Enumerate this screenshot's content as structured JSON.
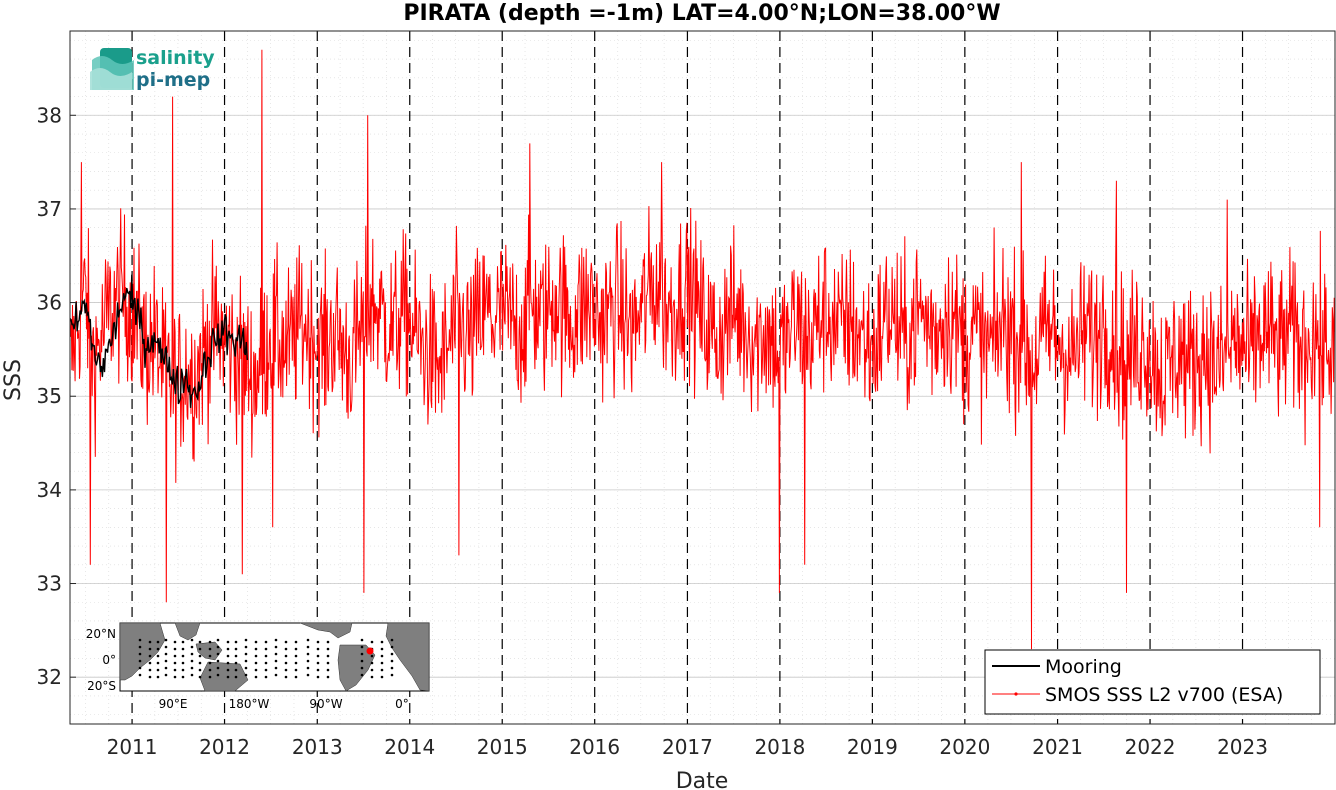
{
  "chart_data": {
    "type": "line",
    "title": "PIRATA (depth =-1m) LAT=4.00°N;LON=38.00°W",
    "xlabel": "Date",
    "ylabel": "SSS",
    "xlim": [
      "2010-05-01",
      "2024-01-01"
    ],
    "ylim": [
      31.5,
      38.9
    ],
    "yticks": [
      32,
      33,
      34,
      35,
      36,
      37,
      38
    ],
    "xticks": [
      "2011",
      "2012",
      "2013",
      "2014",
      "2015",
      "2016",
      "2017",
      "2018",
      "2019",
      "2020",
      "2021",
      "2022",
      "2023"
    ],
    "grid": true,
    "year_boundaries": "dashed vertical lines at each Jan 1",
    "legend": {
      "position": "bottom-right"
    },
    "series": [
      {
        "name": "Mooring",
        "color": "#000000",
        "style": "black line",
        "points": [
          [
            "2010-05-01",
            35.7
          ],
          [
            "2010-06-01",
            35.8
          ],
          [
            "2010-07-01",
            36.0
          ],
          [
            "2010-08-01",
            35.5
          ],
          [
            "2010-09-01",
            35.3
          ],
          [
            "2010-10-01",
            35.5
          ],
          [
            "2010-11-01",
            35.8
          ],
          [
            "2010-12-01",
            36.1
          ],
          [
            "2011-01-01",
            36.0
          ],
          [
            "2011-02-01",
            35.8
          ],
          [
            "2011-03-01",
            35.5
          ],
          [
            "2011-04-01",
            35.7
          ],
          [
            "2011-05-01",
            35.4
          ],
          [
            "2011-06-01",
            35.3
          ],
          [
            "2011-07-01",
            35.1
          ],
          [
            "2011-08-01",
            35.2
          ],
          [
            "2011-09-01",
            35.0
          ],
          [
            "2011-10-01",
            35.2
          ],
          [
            "2011-11-01",
            35.5
          ],
          [
            "2011-12-01",
            35.6
          ],
          [
            "2012-01-01",
            35.7
          ],
          [
            "2012-02-01",
            35.6
          ],
          [
            "2012-03-01",
            35.6
          ],
          [
            "2012-04-01",
            35.5
          ]
        ]
      },
      {
        "name": "SMOS SSS L2 v700 (ESA)",
        "color": "#ff0000",
        "style": "red line with dot markers",
        "points": [
          [
            "2010-05-01",
            35.3
          ],
          [
            "2010-06-01",
            35.8
          ],
          [
            "2010-07-01",
            36.1
          ],
          [
            "2010-08-01",
            35.4
          ],
          [
            "2010-09-01",
            35.6
          ],
          [
            "2010-10-01",
            35.9
          ],
          [
            "2010-11-01",
            36.0
          ],
          [
            "2010-12-01",
            36.1
          ],
          [
            "2011-01-01",
            35.9
          ],
          [
            "2011-02-01",
            35.7
          ],
          [
            "2011-03-01",
            35.5
          ],
          [
            "2011-04-01",
            35.6
          ],
          [
            "2011-05-01",
            35.3
          ],
          [
            "2011-06-01",
            35.2
          ],
          [
            "2011-07-01",
            35.1
          ],
          [
            "2011-08-01",
            35.3
          ],
          [
            "2011-09-01",
            35.2
          ],
          [
            "2011-10-01",
            35.4
          ],
          [
            "2011-11-01",
            35.6
          ],
          [
            "2011-12-01",
            35.7
          ],
          [
            "2012-01-01",
            35.6
          ],
          [
            "2012-02-01",
            35.5
          ],
          [
            "2012-03-01",
            35.4
          ],
          [
            "2012-04-01",
            35.3
          ],
          [
            "2012-05-01",
            35.2
          ],
          [
            "2012-06-01",
            35.4
          ],
          [
            "2012-07-01",
            35.7
          ],
          [
            "2012-08-01",
            35.6
          ],
          [
            "2012-09-01",
            35.5
          ],
          [
            "2012-10-01",
            35.6
          ],
          [
            "2012-11-01",
            35.8
          ],
          [
            "2012-12-01",
            35.7
          ],
          [
            "2013-01-01",
            35.6
          ],
          [
            "2013-02-01",
            35.5
          ],
          [
            "2013-03-01",
            35.7
          ],
          [
            "2013-04-01",
            35.6
          ],
          [
            "2013-05-01",
            35.4
          ],
          [
            "2013-06-01",
            35.5
          ],
          [
            "2013-07-01",
            35.8
          ],
          [
            "2013-08-01",
            36.0
          ],
          [
            "2013-09-01",
            35.9
          ],
          [
            "2013-10-01",
            35.8
          ],
          [
            "2013-11-01",
            35.7
          ],
          [
            "2013-12-01",
            35.9
          ],
          [
            "2014-01-01",
            35.8
          ],
          [
            "2014-02-01",
            35.6
          ],
          [
            "2014-03-01",
            35.5
          ],
          [
            "2014-04-01",
            35.4
          ],
          [
            "2014-05-01",
            35.3
          ],
          [
            "2014-06-01",
            35.5
          ],
          [
            "2014-07-01",
            35.8
          ],
          [
            "2014-08-01",
            35.7
          ],
          [
            "2014-09-01",
            35.6
          ],
          [
            "2014-10-01",
            35.8
          ],
          [
            "2014-11-01",
            35.9
          ],
          [
            "2014-12-01",
            35.8
          ],
          [
            "2015-01-01",
            35.9
          ],
          [
            "2015-02-01",
            35.8
          ],
          [
            "2015-03-01",
            35.7
          ],
          [
            "2015-04-01",
            35.8
          ],
          [
            "2015-05-01",
            36.0
          ],
          [
            "2015-06-01",
            35.8
          ],
          [
            "2015-07-01",
            35.9
          ],
          [
            "2015-08-01",
            36.1
          ],
          [
            "2015-09-01",
            35.9
          ],
          [
            "2015-10-01",
            35.8
          ],
          [
            "2015-11-01",
            35.9
          ],
          [
            "2015-12-01",
            36.0
          ],
          [
            "2016-01-01",
            35.9
          ],
          [
            "2016-02-01",
            35.8
          ],
          [
            "2016-03-01",
            35.9
          ],
          [
            "2016-04-01",
            36.0
          ],
          [
            "2016-05-01",
            35.8
          ],
          [
            "2016-06-01",
            35.7
          ],
          [
            "2016-07-01",
            35.9
          ],
          [
            "2016-08-01",
            36.1
          ],
          [
            "2016-09-01",
            36.2
          ],
          [
            "2016-10-01",
            36.0
          ],
          [
            "2016-11-01",
            35.9
          ],
          [
            "2016-12-01",
            36.1
          ],
          [
            "2017-01-01",
            36.2
          ],
          [
            "2017-02-01",
            36.0
          ],
          [
            "2017-03-01",
            35.8
          ],
          [
            "2017-04-01",
            35.7
          ],
          [
            "2017-05-01",
            35.6
          ],
          [
            "2017-06-01",
            35.8
          ],
          [
            "2017-07-01",
            35.9
          ],
          [
            "2017-08-01",
            35.8
          ],
          [
            "2017-09-01",
            35.7
          ],
          [
            "2017-10-01",
            35.6
          ],
          [
            "2017-11-01",
            35.7
          ],
          [
            "2017-12-01",
            35.6
          ],
          [
            "2018-01-01",
            35.5
          ],
          [
            "2018-02-01",
            35.6
          ],
          [
            "2018-03-01",
            35.8
          ],
          [
            "2018-04-01",
            35.7
          ],
          [
            "2018-05-01",
            35.6
          ],
          [
            "2018-06-01",
            35.8
          ],
          [
            "2018-07-01",
            35.9
          ],
          [
            "2018-08-01",
            35.8
          ],
          [
            "2018-09-01",
            35.7
          ],
          [
            "2018-10-01",
            35.8
          ],
          [
            "2018-11-01",
            35.7
          ],
          [
            "2018-12-01",
            35.6
          ],
          [
            "2019-01-01",
            35.5
          ],
          [
            "2019-02-01",
            35.7
          ],
          [
            "2019-03-01",
            35.9
          ],
          [
            "2019-04-01",
            35.8
          ],
          [
            "2019-05-01",
            35.6
          ],
          [
            "2019-06-01",
            35.7
          ],
          [
            "2019-07-01",
            35.9
          ],
          [
            "2019-08-01",
            35.8
          ],
          [
            "2019-09-01",
            35.7
          ],
          [
            "2019-10-01",
            35.8
          ],
          [
            "2019-11-01",
            35.9
          ],
          [
            "2019-12-01",
            35.7
          ],
          [
            "2020-01-01",
            35.6
          ],
          [
            "2020-02-01",
            35.7
          ],
          [
            "2020-03-01",
            35.6
          ],
          [
            "2020-04-01",
            35.5
          ],
          [
            "2020-05-01",
            35.6
          ],
          [
            "2020-06-01",
            35.8
          ],
          [
            "2020-07-01",
            35.7
          ],
          [
            "2020-08-01",
            35.6
          ],
          [
            "2020-09-01",
            35.5
          ],
          [
            "2020-10-01",
            35.4
          ],
          [
            "2020-11-01",
            35.6
          ],
          [
            "2020-12-01",
            35.7
          ],
          [
            "2021-01-01",
            35.6
          ],
          [
            "2021-02-01",
            35.5
          ],
          [
            "2021-03-01",
            35.4
          ],
          [
            "2021-04-01",
            35.6
          ],
          [
            "2021-05-01",
            35.7
          ],
          [
            "2021-06-01",
            35.6
          ],
          [
            "2021-07-01",
            35.8
          ],
          [
            "2021-08-01",
            35.7
          ],
          [
            "2021-09-01",
            35.5
          ],
          [
            "2021-10-01",
            35.4
          ],
          [
            "2021-11-01",
            35.5
          ],
          [
            "2021-12-01",
            35.6
          ],
          [
            "2022-01-01",
            35.5
          ],
          [
            "2022-02-01",
            35.3
          ],
          [
            "2022-03-01",
            35.2
          ],
          [
            "2022-04-01",
            35.4
          ],
          [
            "2022-05-01",
            35.5
          ],
          [
            "2022-06-01",
            35.3
          ],
          [
            "2022-07-01",
            35.4
          ],
          [
            "2022-08-01",
            35.5
          ],
          [
            "2022-09-01",
            35.4
          ],
          [
            "2022-10-01",
            35.3
          ],
          [
            "2022-11-01",
            35.5
          ],
          [
            "2022-12-01",
            35.6
          ],
          [
            "2023-01-01",
            35.5
          ],
          [
            "2023-02-01",
            35.4
          ],
          [
            "2023-03-01",
            35.6
          ],
          [
            "2023-04-01",
            35.7
          ],
          [
            "2023-05-01",
            35.6
          ],
          [
            "2023-06-01",
            35.5
          ],
          [
            "2023-07-01",
            35.7
          ],
          [
            "2023-08-01",
            35.6
          ],
          [
            "2023-09-01",
            35.5
          ],
          [
            "2023-10-01",
            35.7
          ],
          [
            "2023-11-01",
            35.6
          ],
          [
            "2023-12-01",
            35.5
          ]
        ],
        "extremes": [
          [
            "2010-06-15",
            37.5
          ],
          [
            "2010-07-20",
            33.2
          ],
          [
            "2011-06-10",
            38.2
          ],
          [
            "2011-05-15",
            32.8
          ],
          [
            "2012-05-28",
            38.7
          ],
          [
            "2012-07-10",
            33.6
          ],
          [
            "2012-03-10",
            33.1
          ],
          [
            "2013-07-20",
            38.0
          ],
          [
            "2013-07-05",
            32.9
          ],
          [
            "2015-04-20",
            37.7
          ],
          [
            "2014-07-15",
            33.3
          ],
          [
            "2016-09-20",
            37.5
          ],
          [
            "2017-12-30",
            32.9
          ],
          [
            "2018-04-10",
            33.2
          ],
          [
            "2020-09-20",
            32.3
          ],
          [
            "2020-08-10",
            37.5
          ],
          [
            "2021-08-20",
            37.3
          ],
          [
            "2021-09-30",
            32.9
          ],
          [
            "2022-11-01",
            37.1
          ],
          [
            "2023-11-01",
            33.6
          ]
        ]
      }
    ],
    "inset_map": {
      "description": "world map inset with mooring array dots",
      "lat_ticks": [
        "20°N",
        "0°",
        "20°S"
      ],
      "lon_ticks": [
        "90°E",
        "180°W",
        "90°W",
        "0°"
      ],
      "marker_lat": 4.0,
      "marker_lon": -38.0,
      "marker_color": "#ff0000"
    }
  },
  "logo": {
    "line1": "salinity",
    "line2": "pi-mep"
  }
}
